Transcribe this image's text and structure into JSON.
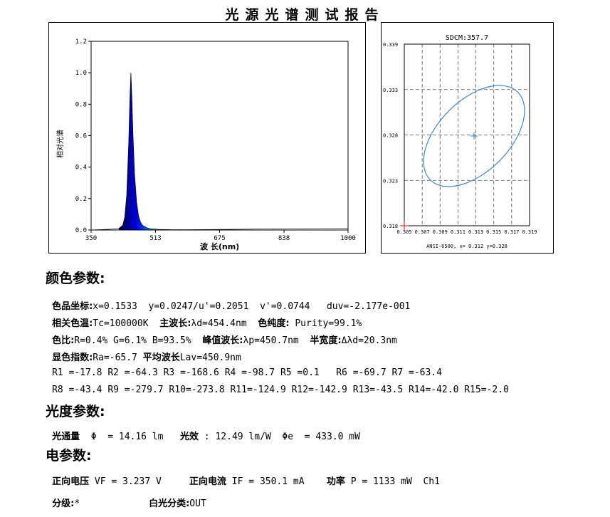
{
  "title": "光源光谱测试报告",
  "spectrum": {
    "ylabel": "相对光谱",
    "xlabel": "波 长(nm)",
    "yticks": [
      "0.0",
      "0.2",
      "0.4",
      "0.6",
      "0.8",
      "1.0",
      "1.2"
    ],
    "xticks": [
      "350",
      "513",
      "675",
      "838",
      "1000"
    ]
  },
  "chart_data": [
    {
      "type": "area",
      "xlabel": "波 长(nm)",
      "ylabel": "相对光谱",
      "xlim": [
        350,
        1000
      ],
      "ylim": [
        0,
        1.2
      ],
      "x": [
        350,
        400,
        420,
        430,
        435,
        440,
        445,
        448,
        450.7,
        453,
        456,
        460,
        465,
        470,
        475,
        480,
        490,
        500,
        520,
        560,
        700,
        850,
        1000
      ],
      "series": [
        {
          "values": [
            0.0,
            0.005,
            0.01,
            0.03,
            0.08,
            0.22,
            0.55,
            0.82,
            1.0,
            0.85,
            0.6,
            0.35,
            0.18,
            0.09,
            0.05,
            0.03,
            0.015,
            0.008,
            0.004,
            0.002,
            0.004,
            0.008,
            0.01
          ]
        }
      ]
    },
    {
      "type": "scatter",
      "title": "SDCM:357.7",
      "xlabel": "ANSI-6500, x= 0.312 y=0.328",
      "xlim": [
        0.305,
        0.319
      ],
      "ylim": [
        0.318,
        0.339
      ],
      "x_ticks": [
        "0.305",
        "0.307",
        "0.309",
        "0.311",
        "0.313",
        "0.315",
        "0.317",
        "0.319"
      ],
      "y_ticks": [
        "0.318",
        "0.323",
        "0.328",
        "0.333",
        "0.339"
      ],
      "grid": true,
      "center": {
        "x": 0.312,
        "y": 0.328
      }
    }
  ],
  "cie": {
    "title": "SDCM:357.7",
    "footer": "ANSI-6500, x= 0.312 y=0.328",
    "xticks": [
      "0.305",
      "0.307",
      "0.309",
      "0.311",
      "0.313",
      "0.315",
      "0.317",
      "0.319"
    ],
    "yticks": [
      "0.318",
      "0.323",
      "0.328",
      "0.333",
      "0.339"
    ]
  },
  "color": {
    "heading": "颜色参数:",
    "coord_label": "色品坐标:",
    "coord_value": "x=0.1533  y=0.0247/u'=0.2051  v'=0.0744   duv=-2.177e-001",
    "cct_label": "相关色温:",
    "cct_value": "Tc=100000K  ",
    "dom_label": "主波长:",
    "dom_value": "λd=454.4nm  ",
    "purity_label": "色纯度:",
    "purity_value": " Purity=99.1%",
    "ratio_label": "色比:",
    "ratio_value": "R=0.4% G=6.1% B=93.5%  ",
    "peak_label": "峰值波长:",
    "peak_value": "λp=450.7nm  ",
    "fwhm_label": "半宽度:",
    "fwhm_value": "Δλd=20.3nm",
    "ra_label": "显色指数:",
    "ra_value": "Ra=-65.7 ",
    "lav_label": "平均波长",
    "lav_value": "Lav=450.9nm",
    "r_row1": "R1 =-17.8 R2 =-64.3 R3 =-168.6 R4 =-98.7 R5 =0.1   R6 =-69.7 R7 =-63.4",
    "r_row2": "R8 =-43.4 R9 =-279.7 R10=-273.8 R11=-124.9 R12=-142.9 R13=-43.5 R14=-42.0 R15=-2.0"
  },
  "photo": {
    "heading": "光度参数:",
    "flux_label": "光通量",
    "flux_value": "  Φ  = 14.16 lm   ",
    "eff_label": "光效",
    "eff_value": " : 12.49 lm/W  Φe  = 433.0 mW"
  },
  "elec": {
    "heading": "电参数:",
    "vf_label": "正向电压",
    "vf_value": " VF = 3.237 V     ",
    "if_label": "正向电流",
    "if_value": " IF = 350.1 mA    ",
    "p_label": "功率",
    "p_value": " P = 1133 mW  Ch1",
    "grade_label": "分级:",
    "grade_value": "*",
    "white_label": "白光分类:",
    "white_value": "OUT"
  }
}
